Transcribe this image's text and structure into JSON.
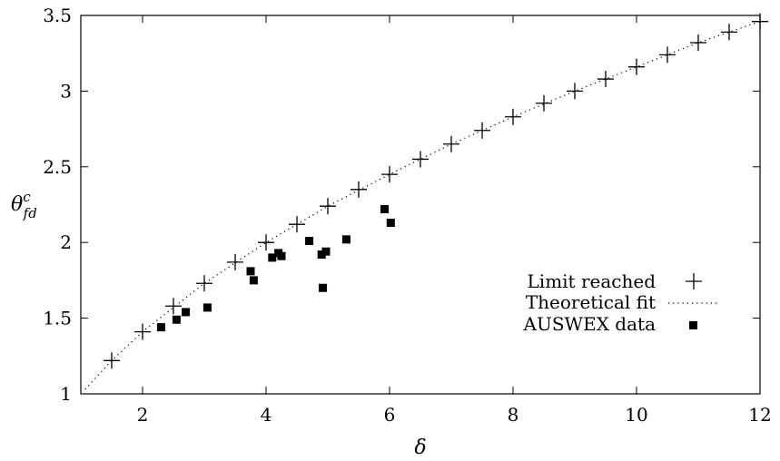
{
  "chart_data": {
    "type": "scatter",
    "title": "",
    "xlabel": "δ",
    "ylabel": "θ",
    "ylabel_superscript": "c",
    "ylabel_subscript": "fd",
    "xlim": [
      1,
      12
    ],
    "ylim": [
      1,
      3.5
    ],
    "xticks": [
      2,
      4,
      6,
      8,
      10,
      12
    ],
    "yticks": [
      1,
      1.5,
      2,
      2.5,
      3,
      3.5
    ],
    "ytick_labels": [
      "1",
      "1.5",
      "2",
      "2.5",
      "3",
      "3.5"
    ],
    "grid": false,
    "legend_position": "right",
    "series": [
      {
        "name": "Limit reached",
        "marker": "plus",
        "x": [
          1.5,
          2.0,
          2.5,
          3.0,
          3.5,
          4.0,
          4.5,
          5.0,
          5.5,
          6.0,
          6.5,
          7.0,
          7.5,
          8.0,
          8.5,
          9.0,
          9.5,
          10.0,
          10.5,
          11.0,
          11.5,
          12.0
        ],
        "y": [
          1.22,
          1.41,
          1.58,
          1.73,
          1.87,
          2.0,
          2.12,
          2.24,
          2.35,
          2.45,
          2.55,
          2.65,
          2.74,
          2.83,
          2.92,
          3.0,
          3.08,
          3.16,
          3.24,
          3.32,
          3.39,
          3.46
        ]
      },
      {
        "name": "Theoretical fit",
        "marker": "dotted-line",
        "x": [
          1.07,
          1.5,
          2,
          3,
          4,
          5,
          6,
          7,
          8,
          9,
          10,
          11,
          12
        ],
        "y": [
          1.03,
          1.22,
          1.41,
          1.73,
          2.0,
          2.24,
          2.45,
          2.65,
          2.83,
          3.0,
          3.16,
          3.32,
          3.46
        ]
      },
      {
        "name": "AUSWEX data",
        "marker": "square",
        "x": [
          2.3,
          2.55,
          2.7,
          3.05,
          3.75,
          3.8,
          4.1,
          4.2,
          4.25,
          4.7,
          4.9,
          4.92,
          4.97,
          5.3,
          5.92,
          6.02
        ],
        "y": [
          1.44,
          1.49,
          1.54,
          1.57,
          1.81,
          1.75,
          1.9,
          1.93,
          1.91,
          2.01,
          1.92,
          1.7,
          1.94,
          2.02,
          2.22,
          2.13
        ]
      }
    ]
  }
}
